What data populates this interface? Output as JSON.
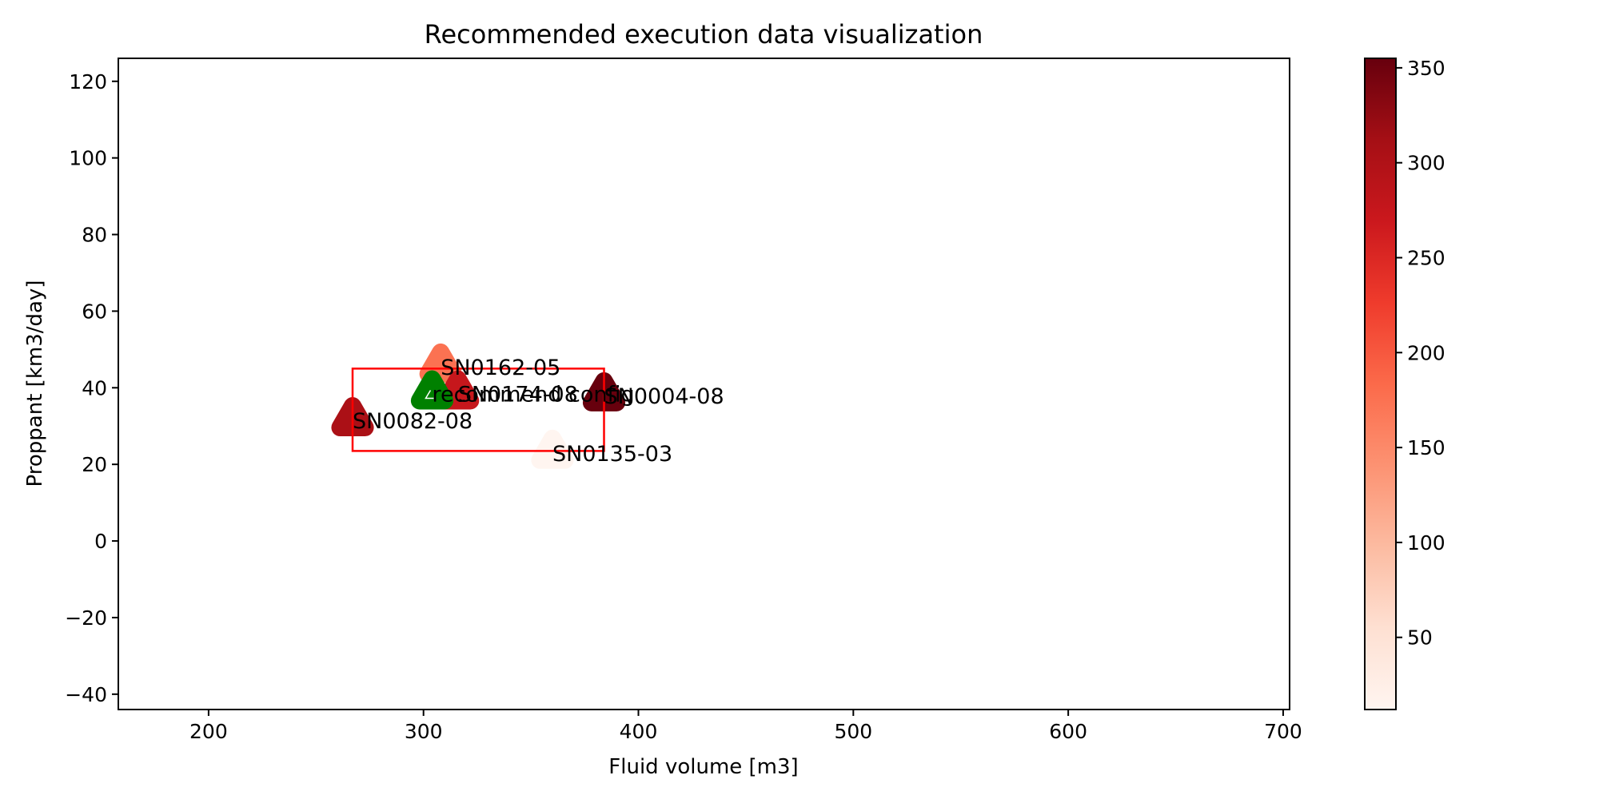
{
  "chart_data": {
    "type": "scatter",
    "title": "Recommended execution data visualization",
    "xlabel": "Fluid volume [m3]",
    "ylabel": "Proppant [km3/day]",
    "xlim": [
      158,
      703
    ],
    "ylim": [
      -44,
      126
    ],
    "x_ticks": [
      200,
      300,
      400,
      500,
      600,
      700
    ],
    "y_ticks": [
      -40,
      -20,
      0,
      20,
      40,
      60,
      80,
      100,
      120
    ],
    "colormap": "Reds",
    "colorbar": {
      "min": 12,
      "max": 355,
      "ticks": [
        50,
        100,
        150,
        200,
        250,
        300,
        350
      ]
    },
    "points": [
      {
        "label": "SN0162-05",
        "x": 308,
        "y": 45.5,
        "c": 175
      },
      {
        "label": "SN0174-08",
        "x": 316,
        "y": 38.5,
        "c": 275
      },
      {
        "label": "SN0004-08",
        "x": 384,
        "y": 38.0,
        "c": 355
      },
      {
        "label": "SN0082-08",
        "x": 267,
        "y": 31.5,
        "c": 305
      },
      {
        "label": "SN0135-03",
        "x": 360,
        "y": 23.0,
        "c": 12
      }
    ],
    "recommended": {
      "label": "recommend config",
      "x": 304,
      "y": 38.5,
      "color": "#008000"
    },
    "highlight_box": {
      "x0": 267,
      "x1": 384,
      "y0": 23.5,
      "y1": 45,
      "color": "#ff0000"
    }
  }
}
